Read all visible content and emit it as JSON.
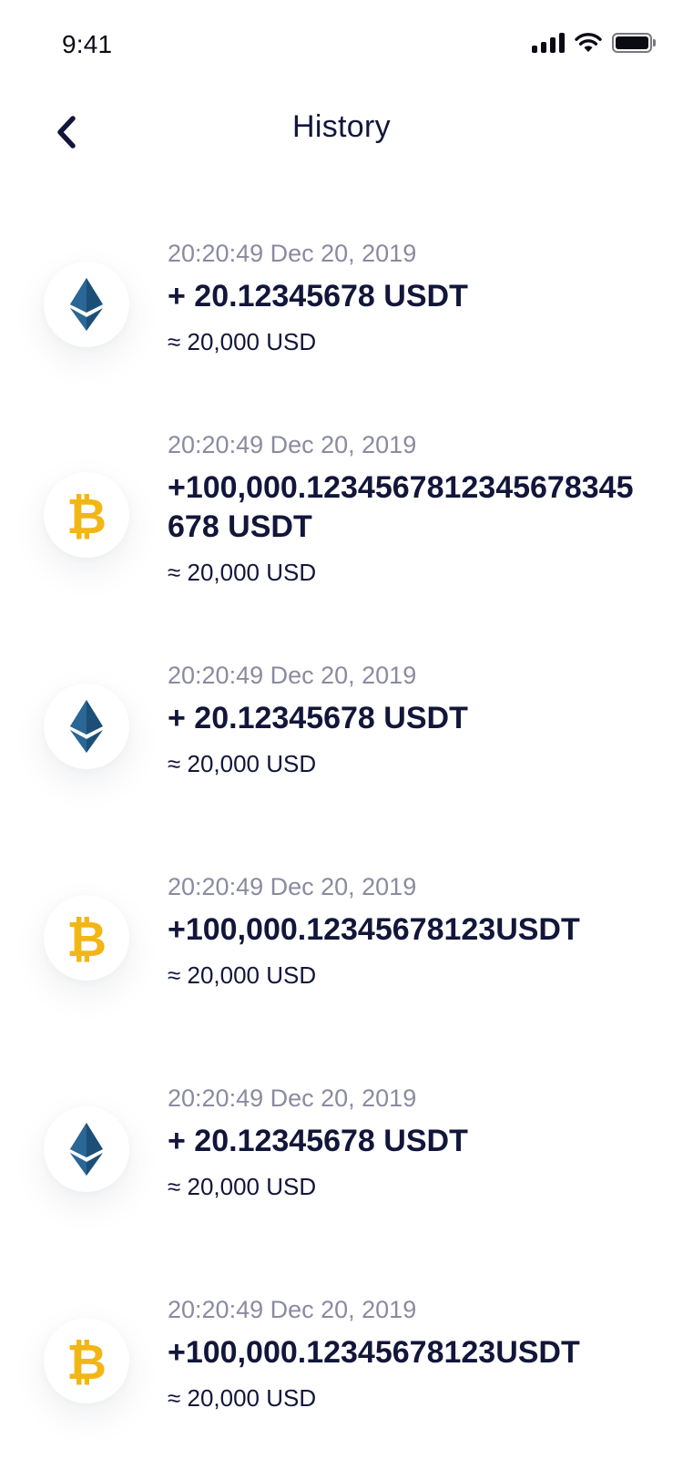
{
  "status_bar": {
    "time": "9:41",
    "icons": [
      "signal-icon",
      "wifi-icon",
      "battery-icon"
    ]
  },
  "header": {
    "title": "History",
    "back_icon": "chevron-left-icon"
  },
  "colors": {
    "text_primary": "#12163a",
    "text_secondary": "#8a8ba0",
    "ethereum": "#1b4f78",
    "bitcoin": "#f2b615"
  },
  "transactions": [
    {
      "coin": "ethereum-icon",
      "time": "20:20:49 Dec 20, 2019",
      "amount": "+ 20.12345678 USDT",
      "fiat": "≈ 20,000 USD"
    },
    {
      "coin": "bitcoin-icon",
      "time": "20:20:49 Dec 20, 2019",
      "amount": "+100,000.1234567812345678345678 USDT",
      "fiat": "≈ 20,000 USD"
    },
    {
      "coin": "ethereum-icon",
      "time": "20:20:49 Dec 20, 2019",
      "amount": "+ 20.12345678 USDT",
      "fiat": "≈ 20,000 USD"
    },
    {
      "coin": "bitcoin-icon",
      "time": "20:20:49 Dec 20, 2019",
      "amount": "+100,000.12345678123USDT",
      "fiat": "≈ 20,000 USD"
    },
    {
      "coin": "ethereum-icon",
      "time": "20:20:49 Dec 20, 2019",
      "amount": "+ 20.12345678 USDT",
      "fiat": "≈ 20,000 USD"
    },
    {
      "coin": "bitcoin-icon",
      "time": "20:20:49 Dec 20, 2019",
      "amount": "+100,000.12345678123USDT",
      "fiat": "≈ 20,000 USD"
    }
  ]
}
